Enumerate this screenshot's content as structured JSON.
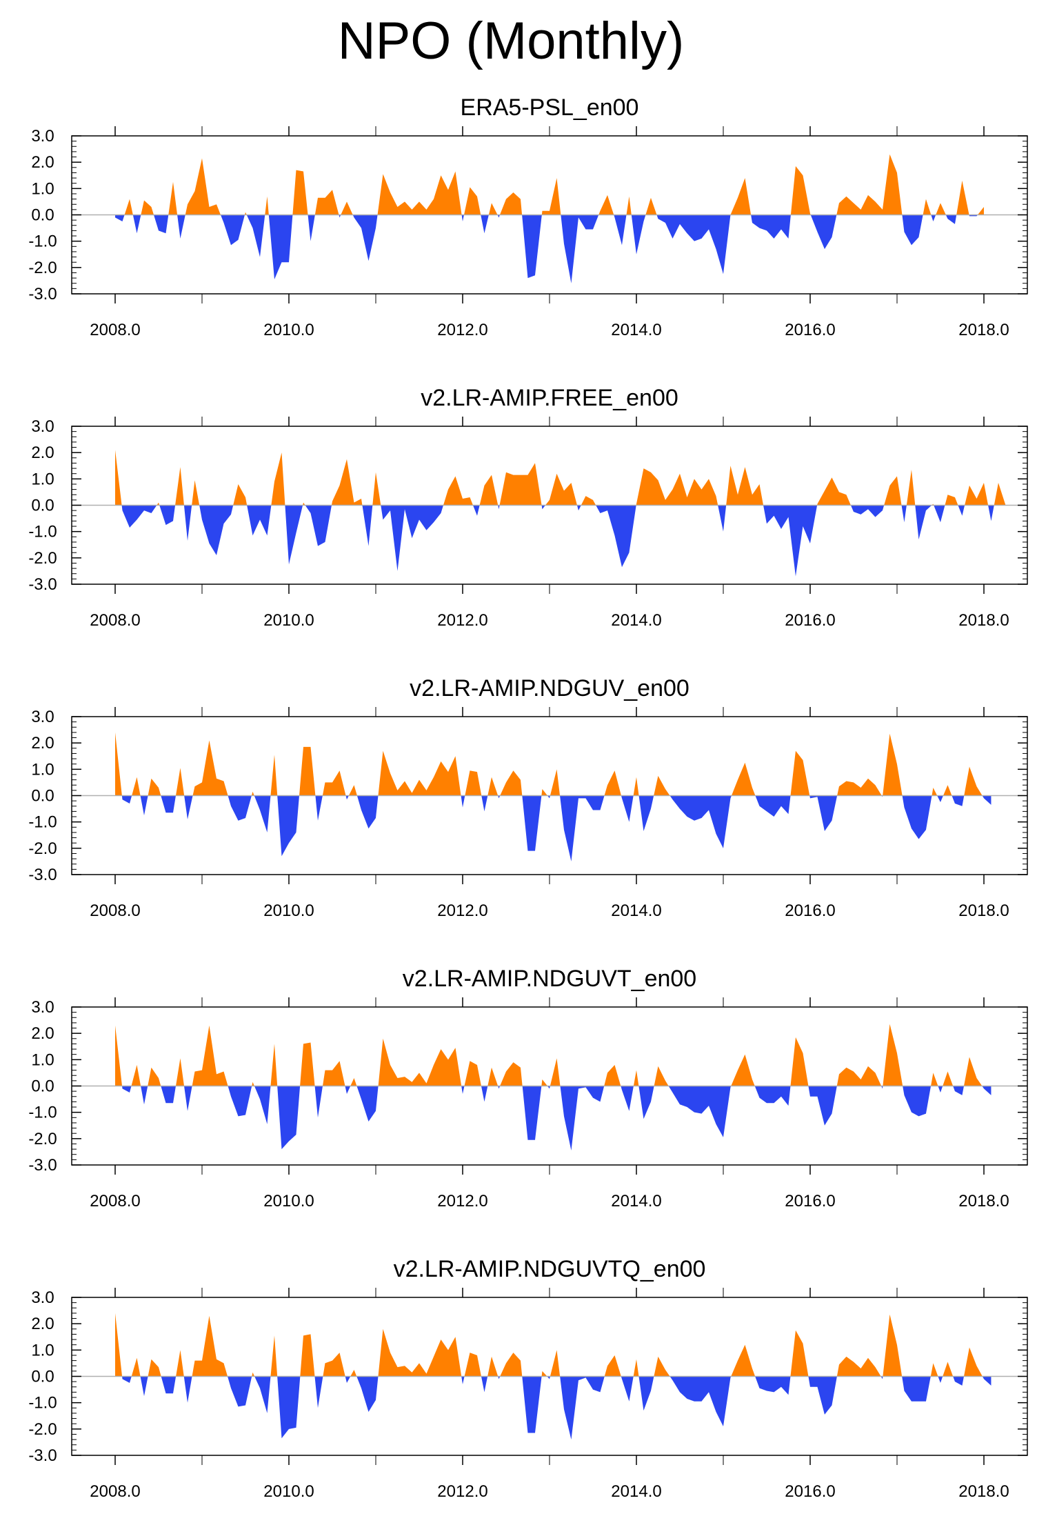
{
  "figure": {
    "title": "NPO (Monthly)"
  },
  "colors": {
    "positive": "#ff8000",
    "negative": "#2b45f0",
    "axis": "#000000",
    "zero_line": "#b0b0b0"
  },
  "chart_data": [
    {
      "type": "area",
      "title": "ERA5-PSL_en00",
      "x_start": 2008.0,
      "x_step": 0.08333,
      "xlim": [
        2007.5,
        2018.5
      ],
      "ylim": [
        -3.0,
        3.0
      ],
      "x_ticks": [
        "2008.0",
        "2010.0",
        "2012.0",
        "2014.0",
        "2016.0",
        "2018.0"
      ],
      "y_ticks": [
        "3.0",
        "2.0",
        "1.0",
        "0.0",
        "-1.0",
        "-2.0",
        "-3.0"
      ],
      "values": [
        -0.1,
        -0.25,
        0.6,
        -0.7,
        0.55,
        0.3,
        -0.6,
        -0.7,
        1.25,
        -0.9,
        0.4,
        0.9,
        2.15,
        0.3,
        0.4,
        -0.3,
        -1.15,
        -0.95,
        0.1,
        -0.5,
        -1.6,
        0.7,
        -2.45,
        -1.8,
        -1.8,
        1.7,
        1.65,
        -1.0,
        0.65,
        0.65,
        0.95,
        -0.1,
        0.5,
        -0.1,
        -0.5,
        -1.75,
        -0.5,
        1.55,
        0.85,
        0.3,
        0.5,
        0.2,
        0.5,
        0.2,
        0.6,
        1.5,
        0.95,
        1.65,
        -0.25,
        1.05,
        0.7,
        -0.7,
        0.45,
        -0.1,
        0.6,
        0.85,
        0.6,
        -2.4,
        -2.3,
        0.15,
        0.15,
        1.4,
        -1.1,
        -2.6,
        -0.1,
        -0.55,
        -0.55,
        0.15,
        0.75,
        -0.1,
        -1.15,
        0.7,
        -1.5,
        -0.25,
        0.65,
        -0.15,
        -0.3,
        -0.9,
        -0.35,
        -0.7,
        -1.0,
        -0.9,
        -0.55,
        -1.3,
        -2.25,
        0.0,
        0.65,
        1.4,
        -0.3,
        -0.5,
        -0.6,
        -0.9,
        -0.55,
        -0.9,
        1.85,
        1.5,
        0.05,
        -0.65,
        -1.3,
        -0.85,
        0.45,
        0.7,
        0.45,
        0.2,
        0.75,
        0.5,
        0.2,
        2.3,
        1.6,
        -0.65,
        -1.15,
        -0.85,
        0.6,
        -0.25,
        0.45,
        -0.15,
        -0.35,
        1.3,
        -0.05,
        -0.05,
        0.3
      ]
    },
    {
      "type": "area",
      "title": "v2.LR-AMIP.FREE_en00",
      "x_start": 2008.0,
      "x_step": 0.08333,
      "xlim": [
        2007.5,
        2018.5
      ],
      "ylim": [
        -3.0,
        3.0
      ],
      "x_ticks": [
        "2008.0",
        "2010.0",
        "2012.0",
        "2014.0",
        "2016.0",
        "2018.0"
      ],
      "y_ticks": [
        "3.0",
        "2.0",
        "1.0",
        "0.0",
        "-1.0",
        "-2.0",
        "-3.0"
      ],
      "values": [
        2.1,
        -0.2,
        -0.85,
        -0.55,
        -0.2,
        -0.3,
        0.1,
        -0.75,
        -0.6,
        1.45,
        -1.35,
        0.95,
        -0.55,
        -1.45,
        -1.9,
        -0.7,
        -0.35,
        0.8,
        0.3,
        -1.15,
        -0.55,
        -1.15,
        0.9,
        2.0,
        -2.25,
        -1.05,
        0.1,
        -0.3,
        -1.55,
        -1.4,
        0.15,
        0.75,
        1.75,
        0.1,
        0.25,
        -1.55,
        1.25,
        -0.55,
        -0.2,
        -2.5,
        -0.15,
        -1.25,
        -0.55,
        -0.95,
        -0.65,
        -0.3,
        0.6,
        1.1,
        0.25,
        0.3,
        -0.4,
        0.75,
        1.15,
        -0.15,
        1.25,
        1.15,
        1.15,
        1.15,
        1.6,
        -0.15,
        0.2,
        1.2,
        0.55,
        0.85,
        -0.2,
        0.35,
        0.2,
        -0.3,
        -0.2,
        -1.15,
        -2.35,
        -1.8,
        0.05,
        1.4,
        1.25,
        0.95,
        0.2,
        0.6,
        1.2,
        0.3,
        1.0,
        0.6,
        1.0,
        0.35,
        -1.0,
        1.5,
        0.4,
        1.45,
        0.4,
        0.8,
        -0.7,
        -0.4,
        -0.9,
        -0.45,
        -2.7,
        -0.8,
        -1.45,
        0.05,
        0.55,
        1.05,
        0.5,
        0.4,
        -0.25,
        -0.35,
        -0.15,
        -0.45,
        -0.2,
        0.75,
        1.1,
        -0.65,
        1.35,
        -1.3,
        -0.2,
        0.05,
        -0.65,
        0.4,
        0.3,
        -0.4,
        0.75,
        0.25,
        0.85,
        -0.6,
        0.85,
        0.0
      ]
    },
    {
      "type": "area",
      "title": "v2.LR-AMIP.NDGUV_en00",
      "x_start": 2008.0,
      "x_step": 0.08333,
      "xlim": [
        2007.5,
        2018.5
      ],
      "ylim": [
        -3.0,
        3.0
      ],
      "x_ticks": [
        "2008.0",
        "2010.0",
        "2012.0",
        "2014.0",
        "2016.0",
        "2018.0"
      ],
      "y_ticks": [
        "3.0",
        "2.0",
        "1.0",
        "0.0",
        "-1.0",
        "-2.0",
        "-3.0"
      ],
      "values": [
        2.4,
        -0.15,
        -0.3,
        0.7,
        -0.75,
        0.65,
        0.3,
        -0.65,
        -0.65,
        1.05,
        -0.9,
        0.35,
        0.5,
        2.1,
        0.65,
        0.55,
        -0.4,
        -0.95,
        -0.85,
        0.15,
        -0.55,
        -1.4,
        1.55,
        -2.3,
        -1.8,
        -1.4,
        1.85,
        1.85,
        -0.95,
        0.5,
        0.5,
        0.95,
        -0.15,
        0.4,
        -0.55,
        -1.25,
        -0.85,
        1.7,
        0.85,
        0.2,
        0.55,
        0.1,
        0.6,
        0.2,
        0.7,
        1.3,
        0.9,
        1.5,
        -0.45,
        0.95,
        0.9,
        -0.6,
        0.7,
        -0.1,
        0.5,
        0.95,
        0.6,
        -2.1,
        -2.1,
        0.25,
        -0.1,
        1.0,
        -1.3,
        -2.5,
        -0.1,
        -0.1,
        -0.55,
        -0.55,
        0.4,
        0.95,
        -0.1,
        -1.0,
        0.7,
        -1.35,
        -0.5,
        0.75,
        0.25,
        -0.15,
        -0.5,
        -0.8,
        -0.95,
        -0.85,
        -0.55,
        -1.45,
        -2.0,
        -0.1,
        0.6,
        1.25,
        0.3,
        -0.4,
        -0.6,
        -0.8,
        -0.4,
        -0.7,
        1.7,
        1.35,
        -0.1,
        -0.05,
        -1.35,
        -0.95,
        0.35,
        0.55,
        0.5,
        0.3,
        0.65,
        0.4,
        -0.05,
        2.35,
        1.2,
        -0.45,
        -1.25,
        -1.65,
        -1.3,
        0.3,
        -0.25,
        0.4,
        -0.3,
        -0.4,
        1.1,
        0.35,
        -0.1,
        -0.35
      ]
    },
    {
      "type": "area",
      "title": "v2.LR-AMIP.NDGUVT_en00",
      "x_start": 2008.0,
      "x_step": 0.08333,
      "xlim": [
        2007.5,
        2018.5
      ],
      "ylim": [
        -3.0,
        3.0
      ],
      "x_ticks": [
        "2008.0",
        "2010.0",
        "2012.0",
        "2014.0",
        "2016.0",
        "2018.0"
      ],
      "y_ticks": [
        "3.0",
        "2.0",
        "1.0",
        "0.0",
        "-1.0",
        "-2.0",
        "-3.0"
      ],
      "values": [
        2.3,
        -0.1,
        -0.25,
        0.8,
        -0.7,
        0.7,
        0.3,
        -0.65,
        -0.65,
        1.05,
        -0.95,
        0.55,
        0.6,
        2.3,
        0.45,
        0.55,
        -0.4,
        -1.15,
        -1.1,
        0.15,
        -0.5,
        -1.45,
        1.6,
        -2.4,
        -2.1,
        -1.85,
        1.6,
        1.65,
        -1.2,
        0.6,
        0.6,
        0.95,
        -0.3,
        0.3,
        -0.5,
        -1.35,
        -0.95,
        1.8,
        0.8,
        0.3,
        0.35,
        0.15,
        0.5,
        0.1,
        0.8,
        1.4,
        1.0,
        1.45,
        -0.3,
        0.95,
        0.8,
        -0.6,
        0.7,
        -0.1,
        0.55,
        0.9,
        0.7,
        -2.05,
        -2.05,
        0.25,
        -0.1,
        1.05,
        -1.15,
        -2.45,
        -0.1,
        -0.05,
        -0.45,
        -0.6,
        0.5,
        0.8,
        -0.15,
        -0.95,
        0.6,
        -1.25,
        -0.6,
        0.75,
        0.2,
        -0.25,
        -0.7,
        -0.8,
        -1.0,
        -1.05,
        -0.75,
        -1.45,
        -1.95,
        -0.05,
        0.6,
        1.2,
        0.25,
        -0.45,
        -0.65,
        -0.65,
        -0.4,
        -0.75,
        1.85,
        1.25,
        -0.4,
        -0.4,
        -1.5,
        -1.05,
        0.45,
        0.7,
        0.55,
        0.25,
        0.75,
        0.5,
        -0.1,
        2.35,
        1.25,
        -0.35,
        -1.0,
        -1.15,
        -1.05,
        0.5,
        -0.25,
        0.55,
        -0.2,
        -0.35,
        1.1,
        0.3,
        -0.1,
        -0.35
      ]
    },
    {
      "type": "area",
      "title": "v2.LR-AMIP.NDGUVTQ_en00",
      "x_start": 2008.0,
      "x_step": 0.08333,
      "xlim": [
        2007.5,
        2018.5
      ],
      "ylim": [
        -3.0,
        3.0
      ],
      "x_ticks": [
        "2008.0",
        "2010.0",
        "2012.0",
        "2014.0",
        "2016.0",
        "2018.0"
      ],
      "y_ticks": [
        "3.0",
        "2.0",
        "1.0",
        "0.0",
        "-1.0",
        "-2.0",
        "-3.0"
      ],
      "values": [
        2.4,
        -0.1,
        -0.25,
        0.7,
        -0.75,
        0.65,
        0.35,
        -0.65,
        -0.65,
        1.0,
        -1.0,
        0.6,
        0.6,
        2.3,
        0.65,
        0.5,
        -0.45,
        -1.15,
        -1.1,
        0.15,
        -0.45,
        -1.4,
        1.55,
        -2.35,
        -2.0,
        -1.95,
        1.55,
        1.6,
        -1.2,
        0.5,
        0.6,
        0.9,
        -0.25,
        0.25,
        -0.45,
        -1.35,
        -0.9,
        1.8,
        0.9,
        0.35,
        0.4,
        0.15,
        0.5,
        0.1,
        0.75,
        1.4,
        1.0,
        1.5,
        -0.3,
        0.9,
        0.8,
        -0.6,
        0.75,
        -0.1,
        0.5,
        0.9,
        0.6,
        -2.15,
        -2.15,
        0.2,
        -0.1,
        1.0,
        -1.25,
        -2.4,
        -0.15,
        -0.05,
        -0.5,
        -0.6,
        0.4,
        0.8,
        -0.1,
        -0.95,
        0.65,
        -1.3,
        -0.55,
        0.75,
        0.25,
        -0.15,
        -0.6,
        -0.85,
        -0.95,
        -0.95,
        -0.6,
        -1.35,
        -1.9,
        -0.05,
        0.6,
        1.2,
        0.3,
        -0.45,
        -0.55,
        -0.6,
        -0.4,
        -0.7,
        1.75,
        1.25,
        -0.4,
        -0.4,
        -1.45,
        -1.1,
        0.45,
        0.75,
        0.55,
        0.3,
        0.7,
        0.35,
        -0.1,
        2.35,
        1.2,
        -0.55,
        -0.95,
        -0.95,
        -0.95,
        0.5,
        -0.25,
        0.55,
        -0.2,
        -0.35,
        1.1,
        0.4,
        -0.1,
        -0.35
      ]
    }
  ]
}
